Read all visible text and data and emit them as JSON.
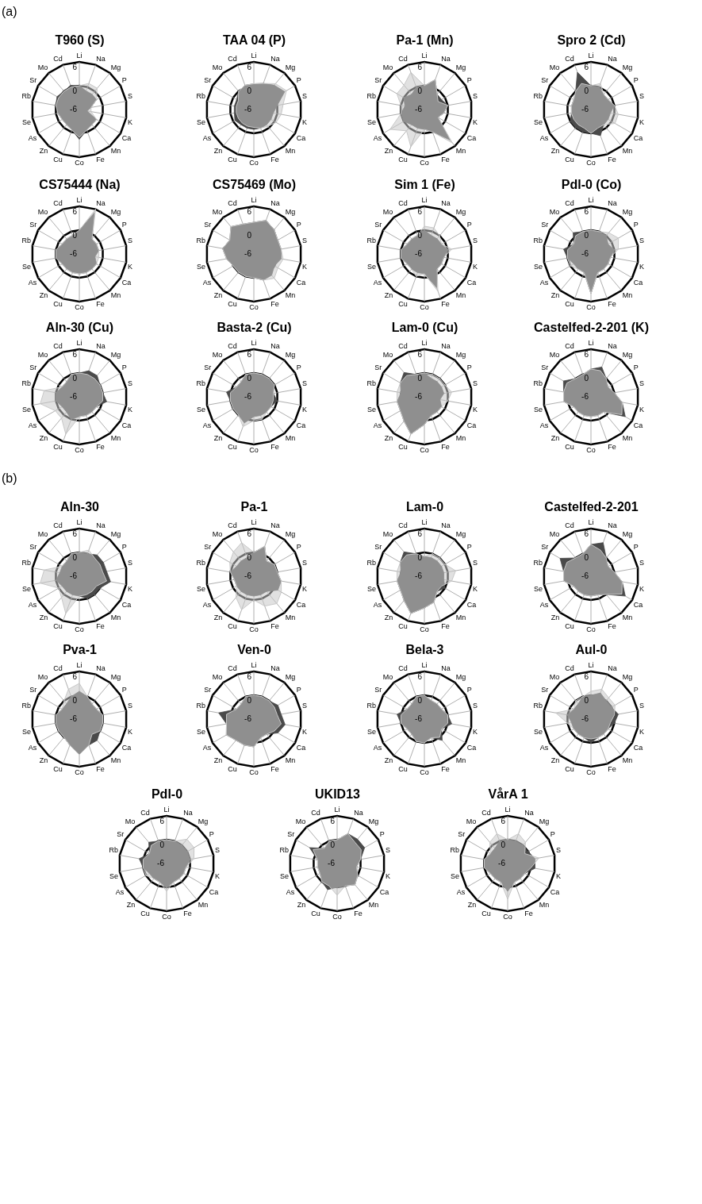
{
  "chart_data": [
    {
      "type": "radar",
      "title": "T960 (S)",
      "annotations": [
        "(a)"
      ],
      "categories": [
        "Li",
        "Na",
        "Mg",
        "P",
        "S",
        "K",
        "Ca",
        "Mn",
        "Fe",
        "Co",
        "Cu",
        "Zn",
        "As",
        "Se",
        "Rb",
        "Sr",
        "Mo",
        "Cd"
      ],
      "ylim": [
        -6,
        6
      ],
      "yticks": [
        -6,
        0,
        6
      ],
      "marker": "none",
      "series": [
        {
          "color": "#4a4a4a",
          "values": [
            0,
            -1,
            -1,
            -1,
            -3,
            -4,
            -1,
            -1,
            -0.5,
            1.5,
            -0.5,
            -1,
            -1,
            -0.5,
            0,
            0.5,
            0,
            0.5
          ]
        },
        {
          "color": "#c8c8c8",
          "values": [
            0,
            1,
            1,
            -1,
            -3,
            -3,
            -1,
            -1,
            -0.5,
            1,
            -0.5,
            -1,
            -1,
            -0.5,
            0,
            0,
            0,
            0
          ]
        }
      ]
    },
    {
      "type": "radar",
      "title": "TAA 04 (P)",
      "categories": [
        "Li",
        "Na",
        "Mg",
        "P",
        "S",
        "K",
        "Ca",
        "Mn",
        "Fe",
        "Co",
        "Cu",
        "Zn",
        "As",
        "Se",
        "Rb",
        "Sr",
        "Mo",
        "Cd"
      ],
      "ylim": [
        -6,
        6
      ],
      "yticks": [
        -6,
        0,
        6
      ],
      "marker": "none",
      "series": [
        {
          "color": "#4a4a4a",
          "values": [
            0.5,
            1,
            2,
            3,
            0,
            -1,
            -1,
            -1,
            -1,
            -1,
            -1,
            -1,
            -0.5,
            -1,
            -1,
            -1,
            0,
            0.5
          ]
        },
        {
          "color": "#c8c8c8",
          "values": [
            0.5,
            1,
            2.5,
            3.5,
            1.5,
            1,
            0.5,
            -0.5,
            -1,
            -1.5,
            -1.5,
            -1.5,
            -1.5,
            -1.5,
            -1.5,
            -1.5,
            0,
            0.5
          ]
        }
      ]
    },
    {
      "type": "radar",
      "title": "Pa-1 (Mn)",
      "categories": [
        "Li",
        "Na",
        "Mg",
        "P",
        "S",
        "K",
        "Ca",
        "Mn",
        "Fe",
        "Co",
        "Cu",
        "Zn",
        "As",
        "Se",
        "Rb",
        "Sr",
        "Mo",
        "Cd"
      ],
      "ylim": [
        -6,
        6
      ],
      "yticks": [
        -6,
        0,
        6
      ],
      "marker": "none",
      "series": [
        {
          "color": "#4a4a4a",
          "values": [
            0,
            2,
            -1,
            -1,
            0,
            -1,
            -2,
            4,
            0,
            -1,
            -1,
            -1,
            0,
            0,
            -1,
            0,
            -1,
            0
          ]
        },
        {
          "color": "#c8c8c8",
          "values": [
            0,
            2,
            -1,
            -2,
            0,
            -1,
            -2,
            5,
            0,
            -1,
            4,
            1,
            4,
            0,
            0,
            2,
            2,
            4
          ]
        }
      ]
    },
    {
      "type": "radar",
      "title": "Spro 2 (Cd)",
      "categories": [
        "Li",
        "Na",
        "Mg",
        "P",
        "S",
        "K",
        "Ca",
        "Mn",
        "Fe",
        "Co",
        "Cu",
        "Zn",
        "As",
        "Se",
        "Rb",
        "Sr",
        "Mo",
        "Cd"
      ],
      "ylim": [
        -6,
        6
      ],
      "yticks": [
        -6,
        0,
        6
      ],
      "marker": "none",
      "series": [
        {
          "color": "#4a4a4a",
          "values": [
            0,
            0,
            -1,
            -1,
            0,
            -1,
            -1,
            -1,
            1,
            0,
            0,
            0,
            0,
            -1,
            -1,
            -1,
            0,
            4
          ]
        },
        {
          "color": "#c8c8c8",
          "values": [
            0,
            1,
            -1,
            -1,
            0,
            1,
            1,
            -1,
            -1,
            0,
            -1,
            -1,
            -1,
            -1,
            -1,
            -1,
            0,
            1
          ]
        }
      ]
    },
    {
      "type": "radar",
      "title": "CS75444 (Na)",
      "categories": [
        "Li",
        "Na",
        "Mg",
        "P",
        "S",
        "K",
        "Ca",
        "Mn",
        "Fe",
        "Co",
        "Cu",
        "Zn",
        "As",
        "Se",
        "Rb",
        "Sr",
        "Mo",
        "Cd"
      ],
      "ylim": [
        -6,
        6
      ],
      "yticks": [
        -6,
        0,
        6
      ],
      "marker": "none",
      "series": [
        {
          "color": "#4a4a4a",
          "values": [
            0,
            5,
            -1,
            -1,
            -1,
            -2,
            -1,
            -1,
            -1,
            -1,
            -1,
            -1,
            -1,
            0,
            0,
            -1,
            -1,
            -1
          ]
        },
        {
          "color": "#c8c8c8",
          "values": [
            0,
            6,
            -1,
            -1,
            -1,
            -1,
            -1,
            -1,
            -1,
            -1,
            -1,
            -1,
            -1,
            0,
            0,
            -1,
            -1,
            -1
          ]
        }
      ]
    },
    {
      "type": "radar",
      "title": "CS75469 (Mo)",
      "categories": [
        "Li",
        "Na",
        "Mg",
        "P",
        "S",
        "K",
        "Ca",
        "Mn",
        "Fe",
        "Co",
        "Cu",
        "Zn",
        "As",
        "Se",
        "Rb",
        "Sr",
        "Mo",
        "Cd"
      ],
      "ylim": [
        -6,
        6
      ],
      "yticks": [
        -6,
        0,
        6
      ],
      "marker": "none",
      "series": [
        {
          "color": "#4a4a4a",
          "values": [
            2,
            3,
            2,
            1,
            1,
            1,
            0,
            1,
            1,
            0,
            0,
            0,
            0,
            1,
            2,
            1,
            3,
            2
          ]
        },
        {
          "color": "#c8c8c8",
          "values": [
            2,
            3,
            2,
            1,
            1,
            1.5,
            1,
            2,
            1,
            0,
            0,
            0,
            0,
            1,
            2,
            1,
            3,
            2
          ]
        }
      ]
    },
    {
      "type": "radar",
      "title": "Sim 1 (Fe)",
      "categories": [
        "Li",
        "Na",
        "Mg",
        "P",
        "S",
        "K",
        "Ca",
        "Mn",
        "Fe",
        "Co",
        "Cu",
        "Zn",
        "As",
        "Se",
        "Rb",
        "Sr",
        "Mo",
        "Cd"
      ],
      "ylim": [
        -6,
        6
      ],
      "yticks": [
        -6,
        0,
        6
      ],
      "marker": "none",
      "series": [
        {
          "color": "#4a4a4a",
          "values": [
            0,
            -1,
            -1,
            -1,
            0,
            -1,
            -1,
            -1,
            3,
            -1,
            -1,
            -1,
            -1,
            0,
            0,
            -1,
            -1,
            -1
          ]
        },
        {
          "color": "#c8c8c8",
          "values": [
            1,
            1,
            0,
            -1,
            1,
            -1,
            -1,
            -1,
            4,
            -1,
            0,
            -1,
            -1,
            0,
            0,
            -1,
            -1,
            -1
          ]
        }
      ]
    },
    {
      "type": "radar",
      "title": "Pdl-0 (Co)",
      "categories": [
        "Li",
        "Na",
        "Mg",
        "P",
        "S",
        "K",
        "Ca",
        "Mn",
        "Fe",
        "Co",
        "Cu",
        "Zn",
        "As",
        "Se",
        "Rb",
        "Sr",
        "Mo",
        "Cd"
      ],
      "ylim": [
        -6,
        6
      ],
      "yticks": [
        -6,
        0,
        6
      ],
      "marker": "none",
      "series": [
        {
          "color": "#4a4a4a",
          "values": [
            0,
            0,
            0,
            -1,
            0,
            -1,
            -1,
            -1,
            -1,
            4,
            -1,
            -1,
            -1,
            0,
            1,
            -1,
            1,
            0
          ]
        },
        {
          "color": "#c8c8c8",
          "values": [
            0,
            0,
            1,
            2,
            1,
            -1,
            -1,
            -1,
            -1,
            4,
            -1,
            -1,
            0,
            0,
            0,
            -1,
            0,
            0
          ]
        }
      ]
    },
    {
      "type": "radar",
      "title": "Aln-30 (Cu)",
      "categories": [
        "Li",
        "Na",
        "Mg",
        "P",
        "S",
        "K",
        "Ca",
        "Mn",
        "Fe",
        "Co",
        "Cu",
        "Zn",
        "As",
        "Se",
        "Rb",
        "Sr",
        "Mo",
        "Cd"
      ],
      "ylim": [
        -6,
        6
      ],
      "yticks": [
        -6,
        0,
        6
      ],
      "marker": "none",
      "series": [
        {
          "color": "#4a4a4a",
          "values": [
            0,
            1,
            1,
            0,
            0,
            1,
            -1,
            -1,
            -1,
            -1,
            0,
            -1,
            -1,
            0,
            0,
            -1,
            -1,
            0
          ]
        },
        {
          "color": "#c8c8c8",
          "values": [
            0,
            0,
            0,
            0,
            0,
            0,
            -1,
            -1,
            -1,
            -1,
            4,
            1,
            1,
            4,
            3,
            -1,
            -1,
            0
          ]
        }
      ]
    },
    {
      "type": "radar",
      "title": "Basta-2 (Cu)",
      "categories": [
        "Li",
        "Na",
        "Mg",
        "P",
        "S",
        "K",
        "Ca",
        "Mn",
        "Fe",
        "Co",
        "Cu",
        "Zn",
        "As",
        "Se",
        "Rb",
        "Sr",
        "Mo",
        "Cd"
      ],
      "ylim": [
        -6,
        6
      ],
      "yticks": [
        -6,
        0,
        6
      ],
      "marker": "none",
      "series": [
        {
          "color": "#4a4a4a",
          "values": [
            0,
            0,
            0,
            0,
            -1,
            0,
            -1,
            -1,
            -1,
            -1,
            1,
            0,
            0,
            0,
            1,
            -1,
            -1,
            0
          ]
        },
        {
          "color": "#c8c8c8",
          "values": [
            0,
            0,
            0,
            0,
            -1,
            -1,
            -1,
            -1,
            0,
            0,
            2,
            0,
            0,
            0,
            0,
            -1,
            -1,
            0
          ]
        }
      ]
    },
    {
      "type": "radar",
      "title": "Lam-0 (Cu)",
      "categories": [
        "Li",
        "Na",
        "Mg",
        "P",
        "S",
        "K",
        "Ca",
        "Mn",
        "Fe",
        "Co",
        "Cu",
        "Zn",
        "As",
        "Se",
        "Rb",
        "Sr",
        "Mo",
        "Cd"
      ],
      "ylim": [
        -6,
        6
      ],
      "yticks": [
        -6,
        0,
        6
      ],
      "marker": "none",
      "series": [
        {
          "color": "#4a4a4a",
          "values": [
            0,
            -1,
            -1,
            -1,
            -1,
            -2,
            -1,
            -1,
            -1,
            1,
            4,
            2,
            1,
            1,
            0,
            1,
            2,
            0
          ]
        },
        {
          "color": "#c8c8c8",
          "values": [
            0,
            0,
            0,
            0,
            1,
            0,
            -1,
            -1,
            -1,
            1,
            4,
            2,
            1,
            1,
            1,
            1,
            1,
            0
          ]
        }
      ]
    },
    {
      "type": "radar",
      "title": "Castelfed-2-201 (K)",
      "categories": [
        "Li",
        "Na",
        "Mg",
        "P",
        "S",
        "K",
        "Ca",
        "Mn",
        "Fe",
        "Co",
        "Cu",
        "Zn",
        "As",
        "Se",
        "Rb",
        "Sr",
        "Mo",
        "Cd"
      ],
      "ylim": [
        -6,
        6
      ],
      "yticks": [
        -6,
        0,
        6
      ],
      "marker": "none",
      "series": [
        {
          "color": "#4a4a4a",
          "values": [
            1,
            2,
            0,
            -1,
            0,
            2,
            4,
            -1,
            -1,
            -1,
            -1,
            -1,
            -1,
            1,
            1,
            2,
            0,
            0
          ]
        },
        {
          "color": "#c8c8c8",
          "values": [
            1,
            1,
            0,
            -1,
            0,
            2,
            3,
            -1,
            -1,
            -1,
            -1,
            -1,
            -1,
            1,
            1,
            1,
            0,
            0
          ]
        }
      ]
    },
    {
      "type": "radar",
      "title": "Aln-30",
      "annotations": [
        "(b)"
      ],
      "categories": [
        "Li",
        "Na",
        "Mg",
        "P",
        "S",
        "K",
        "Ca",
        "Mn",
        "Fe",
        "Co",
        "Cu",
        "Zn",
        "As",
        "Se",
        "Rb",
        "Sr",
        "Mo",
        "Cd"
      ],
      "ylim": [
        -6,
        6
      ],
      "yticks": [
        -6,
        0,
        6
      ],
      "marker": "none",
      "series": [
        {
          "color": "#4a4a4a",
          "values": [
            0,
            0,
            1,
            1,
            1,
            2,
            0,
            0,
            0,
            -1,
            -1,
            -1,
            -1,
            0,
            -1,
            -1,
            -1,
            0
          ]
        },
        {
          "color": "#c8c8c8",
          "values": [
            0,
            1,
            0,
            0,
            0,
            1,
            -1,
            -1,
            -1,
            -1,
            4,
            1,
            0,
            4,
            3,
            -1,
            -1,
            0
          ]
        }
      ]
    },
    {
      "type": "radar",
      "title": "Pa-1",
      "categories": [
        "Li",
        "Na",
        "Mg",
        "P",
        "S",
        "K",
        "Ca",
        "Mn",
        "Fe",
        "Co",
        "Cu",
        "Zn",
        "As",
        "Se",
        "Rb",
        "Sr",
        "Mo",
        "Cd"
      ],
      "ylim": [
        -6,
        6
      ],
      "yticks": [
        -6,
        0,
        6
      ],
      "marker": "none",
      "series": [
        {
          "color": "#4a4a4a",
          "values": [
            0,
            2,
            -1,
            0,
            0,
            1,
            1,
            -1,
            -1,
            -1,
            -1,
            -1,
            -1,
            -1,
            0,
            -1,
            -1,
            -1
          ]
        },
        {
          "color": "#c8c8c8",
          "values": [
            0,
            2,
            -1,
            0,
            0,
            1,
            2,
            3,
            2,
            0,
            3,
            1,
            -1,
            -1,
            0,
            1,
            2,
            3
          ]
        }
      ]
    },
    {
      "type": "radar",
      "title": "Lam-0",
      "categories": [
        "Li",
        "Na",
        "Mg",
        "P",
        "S",
        "K",
        "Ca",
        "Mn",
        "Fe",
        "Co",
        "Cu",
        "Zn",
        "As",
        "Se",
        "Rb",
        "Sr",
        "Mo",
        "Cd"
      ],
      "ylim": [
        -6,
        6
      ],
      "yticks": [
        -6,
        0,
        6
      ],
      "marker": "none",
      "series": [
        {
          "color": "#4a4a4a",
          "values": [
            -1,
            -1,
            -1,
            -1,
            -1,
            -1,
            0,
            -1,
            1,
            2,
            4,
            2,
            1,
            1,
            0,
            1,
            2,
            0
          ]
        },
        {
          "color": "#c8c8c8",
          "values": [
            -1,
            0,
            0,
            0,
            2,
            1,
            -1,
            -1,
            1,
            2,
            4,
            2,
            1,
            1,
            1,
            1,
            1,
            0
          ]
        }
      ]
    },
    {
      "type": "radar",
      "title": "Castelfed-2-201",
      "categories": [
        "Li",
        "Na",
        "Mg",
        "P",
        "S",
        "K",
        "Ca",
        "Mn",
        "Fe",
        "Co",
        "Cu",
        "Zn",
        "As",
        "Se",
        "Rb",
        "Sr",
        "Mo",
        "Cd"
      ],
      "ylim": [
        -6,
        6
      ],
      "yticks": [
        -6,
        0,
        6
      ],
      "marker": "none",
      "series": [
        {
          "color": "#4a4a4a",
          "values": [
            2,
            3,
            0,
            -1,
            0,
            2,
            4,
            0,
            -1,
            -1,
            -1,
            -1,
            -1,
            1,
            1,
            3,
            0,
            0
          ]
        },
        {
          "color": "#c8c8c8",
          "values": [
            2,
            1,
            0,
            -1,
            0,
            2,
            3,
            0,
            -1,
            -1,
            -1,
            -1,
            -1,
            1,
            1,
            1,
            0,
            0
          ]
        }
      ]
    },
    {
      "type": "radar",
      "title": "Pva-1",
      "categories": [
        "Li",
        "Na",
        "Mg",
        "P",
        "S",
        "K",
        "Ca",
        "Mn",
        "Fe",
        "Co",
        "Cu",
        "Zn",
        "As",
        "Se",
        "Rb",
        "Sr",
        "Mo",
        "Cd"
      ],
      "ylim": [
        -6,
        6
      ],
      "yticks": [
        -6,
        0,
        6
      ],
      "marker": "none",
      "series": [
        {
          "color": "#4a4a4a",
          "values": [
            1,
            0,
            -1,
            -1,
            0,
            0,
            0,
            1,
            1,
            3,
            1,
            0,
            0,
            0,
            0,
            -1,
            -1,
            0
          ]
        },
        {
          "color": "#c8c8c8",
          "values": [
            3,
            0,
            -1,
            -1,
            0,
            0,
            0,
            -1,
            1,
            3,
            1,
            0,
            0,
            0,
            0,
            -1,
            0,
            2
          ]
        }
      ]
    },
    {
      "type": "radar",
      "title": "Ven-0",
      "categories": [
        "Li",
        "Na",
        "Mg",
        "P",
        "S",
        "K",
        "Ca",
        "Mn",
        "Fe",
        "Co",
        "Cu",
        "Zn",
        "As",
        "Se",
        "Rb",
        "Sr",
        "Mo",
        "Cd"
      ],
      "ylim": [
        -6,
        6
      ],
      "yticks": [
        -6,
        0,
        6
      ],
      "marker": "none",
      "series": [
        {
          "color": "#4a4a4a",
          "values": [
            0,
            0,
            0,
            1,
            1,
            2,
            1,
            -1,
            -1,
            1,
            1,
            1,
            2,
            1,
            3,
            -1,
            -1,
            0
          ]
        },
        {
          "color": "#c8c8c8",
          "values": [
            0,
            0,
            0,
            0,
            0,
            1,
            0,
            -1,
            -1,
            1,
            1,
            1,
            2,
            1,
            1,
            -1,
            -1,
            0
          ]
        }
      ]
    },
    {
      "type": "radar",
      "title": "Bela-3",
      "categories": [
        "Li",
        "Na",
        "Mg",
        "P",
        "S",
        "K",
        "Ca",
        "Mn",
        "Fe",
        "Co",
        "Cu",
        "Zn",
        "As",
        "Se",
        "Rb",
        "Sr",
        "Mo",
        "Cd"
      ],
      "ylim": [
        -6,
        6
      ],
      "yticks": [
        -6,
        0,
        6
      ],
      "marker": "none",
      "series": [
        {
          "color": "#4a4a4a",
          "values": [
            0,
            -1,
            -1,
            -1,
            0,
            1,
            -1,
            1,
            -1,
            0,
            0,
            -1,
            -1,
            0,
            1,
            -1,
            -1,
            0
          ]
        },
        {
          "color": "#c8c8c8",
          "values": [
            0,
            -1,
            -1,
            -1,
            0,
            0,
            -1,
            0,
            -1,
            0,
            0,
            -1,
            -1,
            0,
            0,
            -1,
            -1,
            0
          ]
        }
      ]
    },
    {
      "type": "radar",
      "title": "Aul-0",
      "categories": [
        "Li",
        "Na",
        "Mg",
        "P",
        "S",
        "K",
        "Ca",
        "Mn",
        "Fe",
        "Co",
        "Cu",
        "Zn",
        "As",
        "Se",
        "Rb",
        "Sr",
        "Mo",
        "Cd"
      ],
      "ylim": [
        -6,
        6
      ],
      "yticks": [
        -6,
        0,
        6
      ],
      "marker": "none",
      "series": [
        {
          "color": "#4a4a4a",
          "values": [
            0,
            1,
            0,
            0,
            1,
            0,
            -1,
            -1,
            -1,
            0,
            -1,
            -1,
            -1,
            -1,
            0,
            -1,
            -1,
            0
          ]
        },
        {
          "color": "#c8c8c8",
          "values": [
            1,
            2,
            1,
            1,
            0,
            -1,
            -1,
            -1,
            -1,
            -1,
            -1,
            -1,
            -1,
            0,
            3,
            -1,
            0,
            0
          ]
        }
      ]
    },
    {
      "type": "radar",
      "title": "Pdl-0",
      "categories": [
        "Li",
        "Na",
        "Mg",
        "P",
        "S",
        "K",
        "Ca",
        "Mn",
        "Fe",
        "Co",
        "Cu",
        "Zn",
        "As",
        "Se",
        "Rb",
        "Sr",
        "Mo",
        "Cd"
      ],
      "ylim": [
        -6,
        6
      ],
      "yticks": [
        -6,
        0,
        6
      ],
      "marker": "none",
      "series": [
        {
          "color": "#4a4a4a",
          "values": [
            0,
            0,
            0,
            0,
            0,
            -1,
            -1,
            -1,
            -1,
            0,
            -1,
            -1,
            -1,
            0,
            1,
            -1,
            1,
            0
          ]
        },
        {
          "color": "#c8c8c8",
          "values": [
            0,
            0,
            2,
            2,
            1,
            -1,
            -1,
            -1,
            -1,
            1,
            -1,
            -1,
            0,
            0,
            0,
            -1,
            0,
            0
          ]
        }
      ]
    },
    {
      "type": "radar",
      "title": "UKID13",
      "categories": [
        "Li",
        "Na",
        "Mg",
        "P",
        "S",
        "K",
        "Ca",
        "Mn",
        "Fe",
        "Co",
        "Cu",
        "Zn",
        "As",
        "Se",
        "Rb",
        "Sr",
        "Mo",
        "Cd"
      ],
      "ylim": [
        -6,
        6
      ],
      "yticks": [
        -6,
        0,
        6
      ],
      "marker": "none",
      "series": [
        {
          "color": "#4a4a4a",
          "values": [
            0,
            2,
            2,
            2,
            0,
            -1,
            0,
            1,
            0,
            0,
            1,
            0,
            -1,
            -1,
            -1,
            2,
            -1,
            0
          ]
        },
        {
          "color": "#c8c8c8",
          "values": [
            0,
            2,
            1,
            1,
            0,
            -1,
            0,
            1,
            0,
            2,
            0,
            0,
            -1,
            -1,
            -1,
            1,
            -1,
            0
          ]
        }
      ]
    },
    {
      "type": "radar",
      "title": "VårA 1",
      "categories": [
        "Li",
        "Na",
        "Mg",
        "P",
        "S",
        "K",
        "Ca",
        "Mn",
        "Fe",
        "Co",
        "Cu",
        "Zn",
        "As",
        "Se",
        "Rb",
        "Sr",
        "Mo",
        "Cd"
      ],
      "ylim": [
        -6,
        6
      ],
      "yticks": [
        -6,
        0,
        6
      ],
      "marker": "none",
      "series": [
        {
          "color": "#4a4a4a",
          "values": [
            0,
            0,
            0,
            0,
            1,
            1,
            -1,
            -1,
            -1,
            1,
            -1,
            -1,
            -1,
            0,
            0,
            -1,
            -1,
            0
          ]
        },
        {
          "color": "#c8c8c8",
          "values": [
            0,
            2,
            1,
            -1,
            2,
            0,
            -1,
            -1,
            -1,
            3,
            -1,
            -1,
            -1,
            0,
            0,
            -1,
            1,
            2
          ]
        }
      ]
    }
  ]
}
